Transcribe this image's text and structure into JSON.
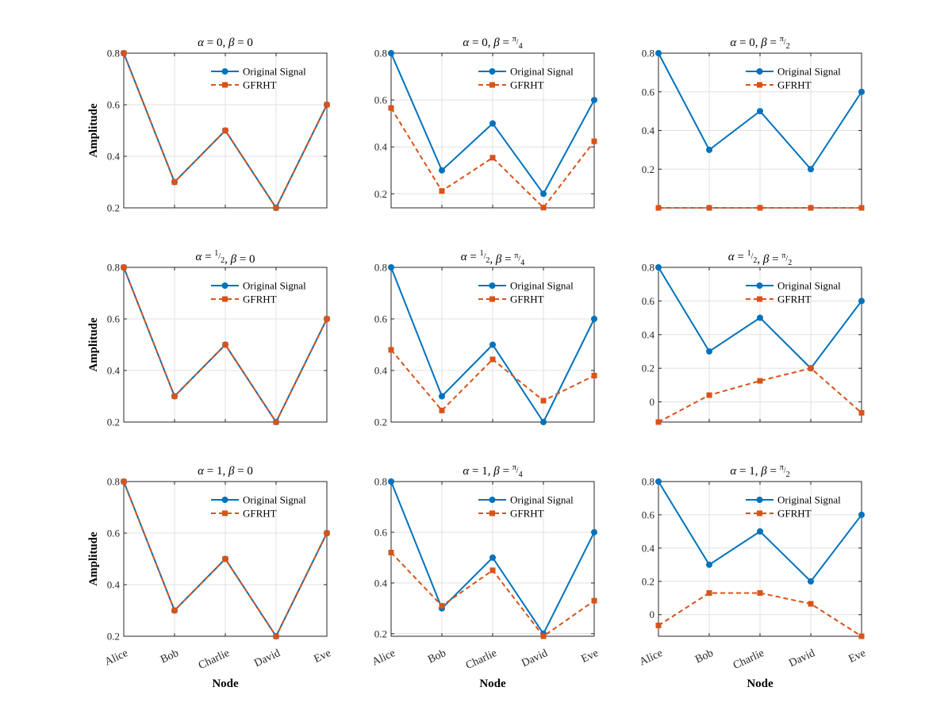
{
  "figure": {
    "ylabel": "Amplitude",
    "xlabel": "Node",
    "legend": {
      "original": "Original Signal",
      "transformed": "GFRHT"
    },
    "colors": {
      "original": "#0072BD",
      "transformed": "#D95319",
      "grid": "#e0e0e0",
      "axis": "#262626"
    }
  },
  "chart_data": [
    {
      "type": "line",
      "title": {
        "alpha": "0",
        "beta": "0"
      },
      "categories": [
        "Alice",
        "Bob",
        "Charlie",
        "David",
        "Eve"
      ],
      "ylim": [
        0.2,
        0.8
      ],
      "yticks": [
        "0.2",
        "0.4",
        "0.6",
        "0.8"
      ],
      "series": [
        {
          "name": "Original Signal",
          "values": [
            0.8,
            0.3,
            0.5,
            0.2,
            0.6
          ]
        },
        {
          "name": "GFRHT",
          "values": [
            0.8,
            0.3,
            0.5,
            0.2,
            0.6
          ]
        }
      ]
    },
    {
      "type": "line",
      "title": {
        "alpha": "0",
        "beta": "π/4"
      },
      "categories": [
        "Alice",
        "Bob",
        "Charlie",
        "David",
        "Eve"
      ],
      "ylim": [
        0.14,
        0.8
      ],
      "yticks": [
        "0.2",
        "0.4",
        "0.6",
        "0.8"
      ],
      "series": [
        {
          "name": "Original Signal",
          "values": [
            0.8,
            0.3,
            0.5,
            0.2,
            0.6
          ]
        },
        {
          "name": "GFRHT",
          "values": [
            0.566,
            0.212,
            0.354,
            0.141,
            0.424
          ]
        }
      ]
    },
    {
      "type": "line",
      "title": {
        "alpha": "0",
        "beta": "π/2"
      },
      "categories": [
        "Alice",
        "Bob",
        "Charlie",
        "David",
        "Eve"
      ],
      "ylim": [
        0,
        0.8
      ],
      "yticks": [
        "0.2",
        "0.4",
        "0.6",
        "0.8"
      ],
      "series": [
        {
          "name": "Original Signal",
          "values": [
            0.8,
            0.3,
            0.5,
            0.2,
            0.6
          ]
        },
        {
          "name": "GFRHT",
          "values": [
            0,
            0,
            0,
            0,
            0
          ]
        }
      ]
    },
    {
      "type": "line",
      "title": {
        "alpha": "1/2",
        "beta": "0"
      },
      "categories": [
        "Alice",
        "Bob",
        "Charlie",
        "David",
        "Eve"
      ],
      "ylim": [
        0.2,
        0.8
      ],
      "yticks": [
        "0.2",
        "0.4",
        "0.6",
        "0.8"
      ],
      "series": [
        {
          "name": "Original Signal",
          "values": [
            0.8,
            0.3,
            0.5,
            0.2,
            0.6
          ]
        },
        {
          "name": "GFRHT",
          "values": [
            0.8,
            0.3,
            0.5,
            0.2,
            0.6
          ]
        }
      ]
    },
    {
      "type": "line",
      "title": {
        "alpha": "1/2",
        "beta": "π/4"
      },
      "categories": [
        "Alice",
        "Bob",
        "Charlie",
        "David",
        "Eve"
      ],
      "ylim": [
        0.2,
        0.8
      ],
      "yticks": [
        "0.2",
        "0.4",
        "0.6",
        "0.8"
      ],
      "series": [
        {
          "name": "Original Signal",
          "values": [
            0.8,
            0.3,
            0.5,
            0.2,
            0.6
          ]
        },
        {
          "name": "GFRHT",
          "values": [
            0.48,
            0.245,
            0.443,
            0.283,
            0.38
          ]
        }
      ]
    },
    {
      "type": "line",
      "title": {
        "alpha": "1/2",
        "beta": "π/2"
      },
      "categories": [
        "Alice",
        "Bob",
        "Charlie",
        "David",
        "Eve"
      ],
      "ylim": [
        -0.12,
        0.8
      ],
      "yticks": [
        "0",
        "0.2",
        "0.4",
        "0.6",
        "0.8"
      ],
      "series": [
        {
          "name": "Original Signal",
          "values": [
            0.8,
            0.3,
            0.5,
            0.2,
            0.6
          ]
        },
        {
          "name": "GFRHT",
          "values": [
            -0.12,
            0.04,
            0.125,
            0.2,
            -0.065
          ]
        }
      ]
    },
    {
      "type": "line",
      "title": {
        "alpha": "1",
        "beta": "0"
      },
      "categories": [
        "Alice",
        "Bob",
        "Charlie",
        "David",
        "Eve"
      ],
      "ylim": [
        0.2,
        0.8
      ],
      "yticks": [
        "0.2",
        "0.4",
        "0.6",
        "0.8"
      ],
      "series": [
        {
          "name": "Original Signal",
          "values": [
            0.8,
            0.3,
            0.5,
            0.2,
            0.6
          ]
        },
        {
          "name": "GFRHT",
          "values": [
            0.8,
            0.3,
            0.5,
            0.2,
            0.6
          ]
        }
      ]
    },
    {
      "type": "line",
      "title": {
        "alpha": "1",
        "beta": "π/4"
      },
      "categories": [
        "Alice",
        "Bob",
        "Charlie",
        "David",
        "Eve"
      ],
      "ylim": [
        0.19,
        0.8
      ],
      "yticks": [
        "0.2",
        "0.4",
        "0.6",
        "0.8"
      ],
      "series": [
        {
          "name": "Original Signal",
          "values": [
            0.8,
            0.3,
            0.5,
            0.2,
            0.6
          ]
        },
        {
          "name": "GFRHT",
          "values": [
            0.52,
            0.31,
            0.45,
            0.19,
            0.33
          ]
        }
      ]
    },
    {
      "type": "line",
      "title": {
        "alpha": "1",
        "beta": "π/2"
      },
      "categories": [
        "Alice",
        "Bob",
        "Charlie",
        "David",
        "Eve"
      ],
      "ylim": [
        -0.13,
        0.8
      ],
      "yticks": [
        "0",
        "0.2",
        "0.4",
        "0.6",
        "0.8"
      ],
      "series": [
        {
          "name": "Original Signal",
          "values": [
            0.8,
            0.3,
            0.5,
            0.2,
            0.6
          ]
        },
        {
          "name": "GFRHT",
          "values": [
            -0.065,
            0.13,
            0.13,
            0.065,
            -0.13
          ]
        }
      ]
    }
  ]
}
